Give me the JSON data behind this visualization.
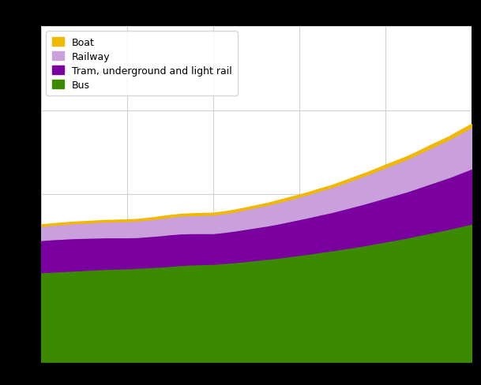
{
  "x": [
    0,
    1,
    2,
    3,
    4,
    5,
    6,
    7,
    8,
    9,
    10,
    11,
    12,
    13,
    14,
    15,
    16,
    17,
    18,
    19,
    20,
    21,
    22,
    23,
    24,
    25,
    26,
    27,
    28,
    29,
    30,
    31,
    32,
    33,
    34,
    35,
    36,
    37,
    38,
    39,
    40
  ],
  "bus": [
    320,
    322,
    324,
    326,
    328,
    330,
    332,
    333,
    334,
    336,
    338,
    340,
    343,
    346,
    348,
    349,
    350,
    353,
    356,
    360,
    364,
    368,
    372,
    377,
    382,
    387,
    393,
    398,
    404,
    410,
    416,
    423,
    430,
    437,
    444,
    452,
    460,
    468,
    476,
    485,
    494
  ],
  "tram": [
    115,
    116,
    116,
    116,
    115,
    114,
    113,
    112,
    111,
    110,
    111,
    112,
    113,
    113,
    112,
    111,
    110,
    111,
    113,
    115,
    117,
    119,
    122,
    125,
    128,
    131,
    134,
    137,
    141,
    145,
    149,
    153,
    157,
    161,
    165,
    170,
    175,
    180,
    185,
    191,
    197
  ],
  "railway": [
    50,
    51,
    52,
    53,
    54,
    55,
    56,
    57,
    58,
    59,
    60,
    61,
    62,
    63,
    64,
    65,
    66,
    67,
    68,
    70,
    72,
    74,
    76,
    78,
    80,
    83,
    86,
    89,
    92,
    96,
    100,
    104,
    108,
    112,
    116,
    121,
    126,
    131,
    136,
    142,
    148
  ],
  "boat": [
    6,
    6,
    6,
    6,
    6,
    6,
    6,
    6,
    6,
    6,
    6,
    7,
    7,
    7,
    7,
    7,
    7,
    7,
    7,
    7,
    7,
    7,
    8,
    8,
    8,
    8,
    8,
    8,
    9,
    9,
    9,
    9,
    10,
    10,
    10,
    10,
    11,
    11,
    11,
    12,
    12
  ],
  "colors": {
    "bus": "#3c8a00",
    "tram": "#7b00a0",
    "railway": "#c9a0dc",
    "boat": "#f0b800"
  },
  "legend_labels": [
    "Boat",
    "Railway",
    "Tram, underground and light rail",
    "Bus"
  ],
  "background_color": "#ffffff",
  "grid_color": "#d0d0d0",
  "fig_background": "#000000",
  "ylim_max": 1200,
  "xlim_max": 40
}
